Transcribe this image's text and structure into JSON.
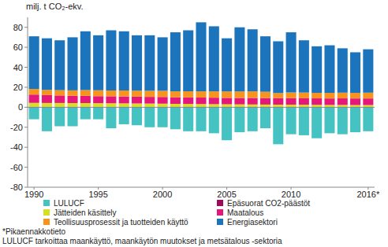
{
  "chart_data": {
    "type": "bar",
    "stacked": true,
    "y_label": "milj. t CO₂-ekv.",
    "annotations": [
      "*Pikaennakkotieto",
      "LULUCF tarkoittaa maankäyttö, maankäytön muutokset ja metsätalous -sektoria"
    ],
    "legend": "bottom",
    "grid": false,
    "categories": [
      "1990",
      null,
      null,
      null,
      null,
      "1995",
      null,
      null,
      null,
      null,
      "2000",
      null,
      null,
      null,
      null,
      "2005",
      null,
      null,
      null,
      null,
      "2010",
      null,
      null,
      null,
      null,
      null,
      "2016*"
    ],
    "ylim": [
      -80,
      90
    ],
    "yticks": [
      -80,
      -60,
      -40,
      -20,
      0,
      20,
      40,
      60,
      80
    ],
    "series": [
      {
        "name": "LULUCF",
        "color": "#45c3c3",
        "values": [
          -12,
          -24,
          -19,
          -19,
          -12,
          -12,
          -21,
          -17,
          -18,
          -20,
          -20,
          -22,
          -24,
          -24,
          -26,
          -33,
          -25,
          -24,
          -21,
          -37,
          -27,
          -28,
          -31,
          -26,
          -27,
          -25,
          -24
        ]
      },
      {
        "name": "Epäsuorat CO2-päästöt",
        "color": "#9b0d5b",
        "values": [
          0.4,
          0.4,
          0.4,
          0.4,
          0.4,
          0.4,
          0.4,
          0.4,
          0.4,
          0.4,
          0.4,
          0.3,
          0.3,
          0.3,
          0.3,
          0.3,
          0.3,
          0.3,
          0.3,
          0.3,
          0.3,
          0.3,
          0.3,
          0.3,
          0.3,
          0.3,
          0.3
        ]
      },
      {
        "name": "Jätteiden käsittely",
        "color": "#d7df23",
        "values": [
          4.0,
          3.9,
          3.9,
          3.8,
          3.8,
          3.7,
          3.6,
          3.5,
          3.4,
          3.3,
          3.2,
          3.1,
          3.0,
          2.9,
          2.8,
          2.7,
          2.6,
          2.5,
          2.4,
          2.3,
          2.3,
          2.2,
          2.1,
          2.0,
          2.0,
          1.9,
          1.9
        ]
      },
      {
        "name": "Maatalous",
        "color": "#e6177b",
        "values": [
          8.3,
          7.9,
          7.5,
          7.3,
          7.2,
          7.0,
          7.0,
          6.9,
          6.8,
          6.7,
          6.7,
          6.6,
          6.6,
          6.5,
          6.5,
          6.4,
          6.4,
          6.5,
          6.5,
          6.5,
          6.5,
          6.5,
          6.5,
          6.5,
          6.6,
          6.6,
          6.6
        ]
      },
      {
        "name": "Teollisuusprosessit ja tuotteiden käyttö",
        "color": "#f7941d",
        "values": [
          5.6,
          5.2,
          5.3,
          5.4,
          5.8,
          5.9,
          5.8,
          6.0,
          6.0,
          6.1,
          6.2,
          5.9,
          6.1,
          6.2,
          6.3,
          6.4,
          6.5,
          6.6,
          6.3,
          5.1,
          5.7,
          5.7,
          5.5,
          5.6,
          5.7,
          5.6,
          5.8
        ]
      },
      {
        "name": "Energiasektori",
        "color": "#1c75bc",
        "values": [
          52.7,
          51.6,
          49.9,
          53.1,
          58.8,
          55.0,
          60.2,
          59.2,
          55.4,
          55.5,
          53.5,
          59.1,
          61.0,
          69.1,
          65.1,
          53.2,
          64.2,
          62.1,
          55.5,
          51.8,
          60.2,
          52.3,
          46.6,
          47.6,
          44.4,
          40.6,
          43.4
        ]
      }
    ]
  }
}
